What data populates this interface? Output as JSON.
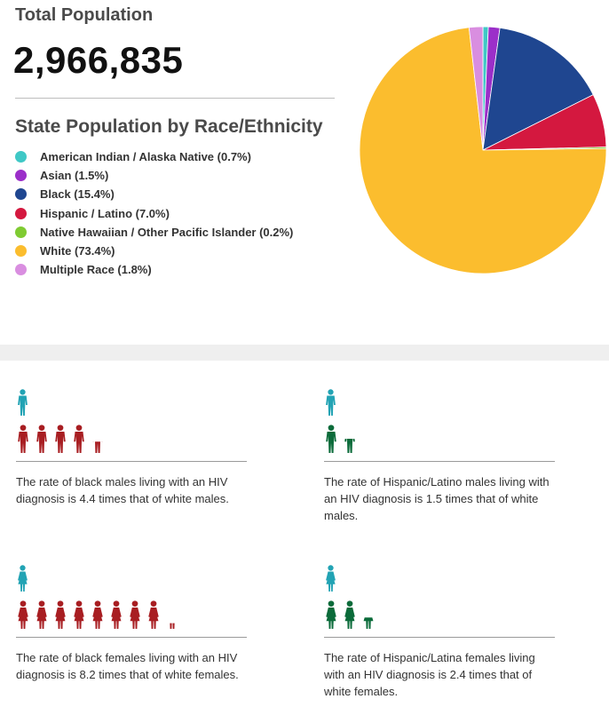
{
  "total": {
    "title": "Total Population",
    "value": "2,966,835"
  },
  "race": {
    "title": "State Population by Race/Ethnicity",
    "legend": [
      "American Indian / Alaska Native (0.7%)",
      "Asian (1.5%)",
      "Black (15.4%)",
      "Hispanic / Latino (7.0%)",
      "Native Hawaiian / Other Pacific Islander (0.2%)",
      "White (73.4%)",
      "Multiple Race (1.8%)"
    ]
  },
  "chart_data": {
    "type": "pie",
    "title": "State Population by Race/Ethnicity",
    "categories": [
      "American Indian / Alaska Native",
      "Asian",
      "Black",
      "Hispanic / Latino",
      "Native Hawaiian / Other Pacific Islander",
      "White",
      "Multiple Race"
    ],
    "values": [
      0.7,
      1.5,
      15.4,
      7.0,
      0.2,
      73.4,
      1.8
    ],
    "colors": [
      "#3fc8c6",
      "#9b2fc9",
      "#1f4690",
      "#d4183f",
      "#7fcb32",
      "#fbbd2e",
      "#d98ee0"
    ],
    "legend_position": "left"
  },
  "icons": {
    "reference_color": "#22a3b4",
    "black_color": "#a81e22",
    "hispanic_color": "#0b6b3a"
  },
  "cards": [
    {
      "icon": "male-figure-icon",
      "comparison_color": "black_color",
      "ratio": 4.4,
      "text": "The rate of black males living with an HIV diagnosis is 4.4 times that of white males."
    },
    {
      "icon": "male-figure-icon",
      "comparison_color": "hispanic_color",
      "ratio": 1.5,
      "text": "The rate of Hispanic/Latino males living with an HIV diagnosis is 1.5 times that of white males."
    },
    {
      "icon": "female-figure-icon",
      "comparison_color": "black_color",
      "ratio": 8.2,
      "text": "The rate of black females living with an HIV diagnosis is 8.2 times that of white females."
    },
    {
      "icon": "female-figure-icon",
      "comparison_color": "hispanic_color",
      "ratio": 2.4,
      "text": "The rate of Hispanic/Latina females living with an HIV diagnosis is 2.4 times that of white females."
    }
  ]
}
